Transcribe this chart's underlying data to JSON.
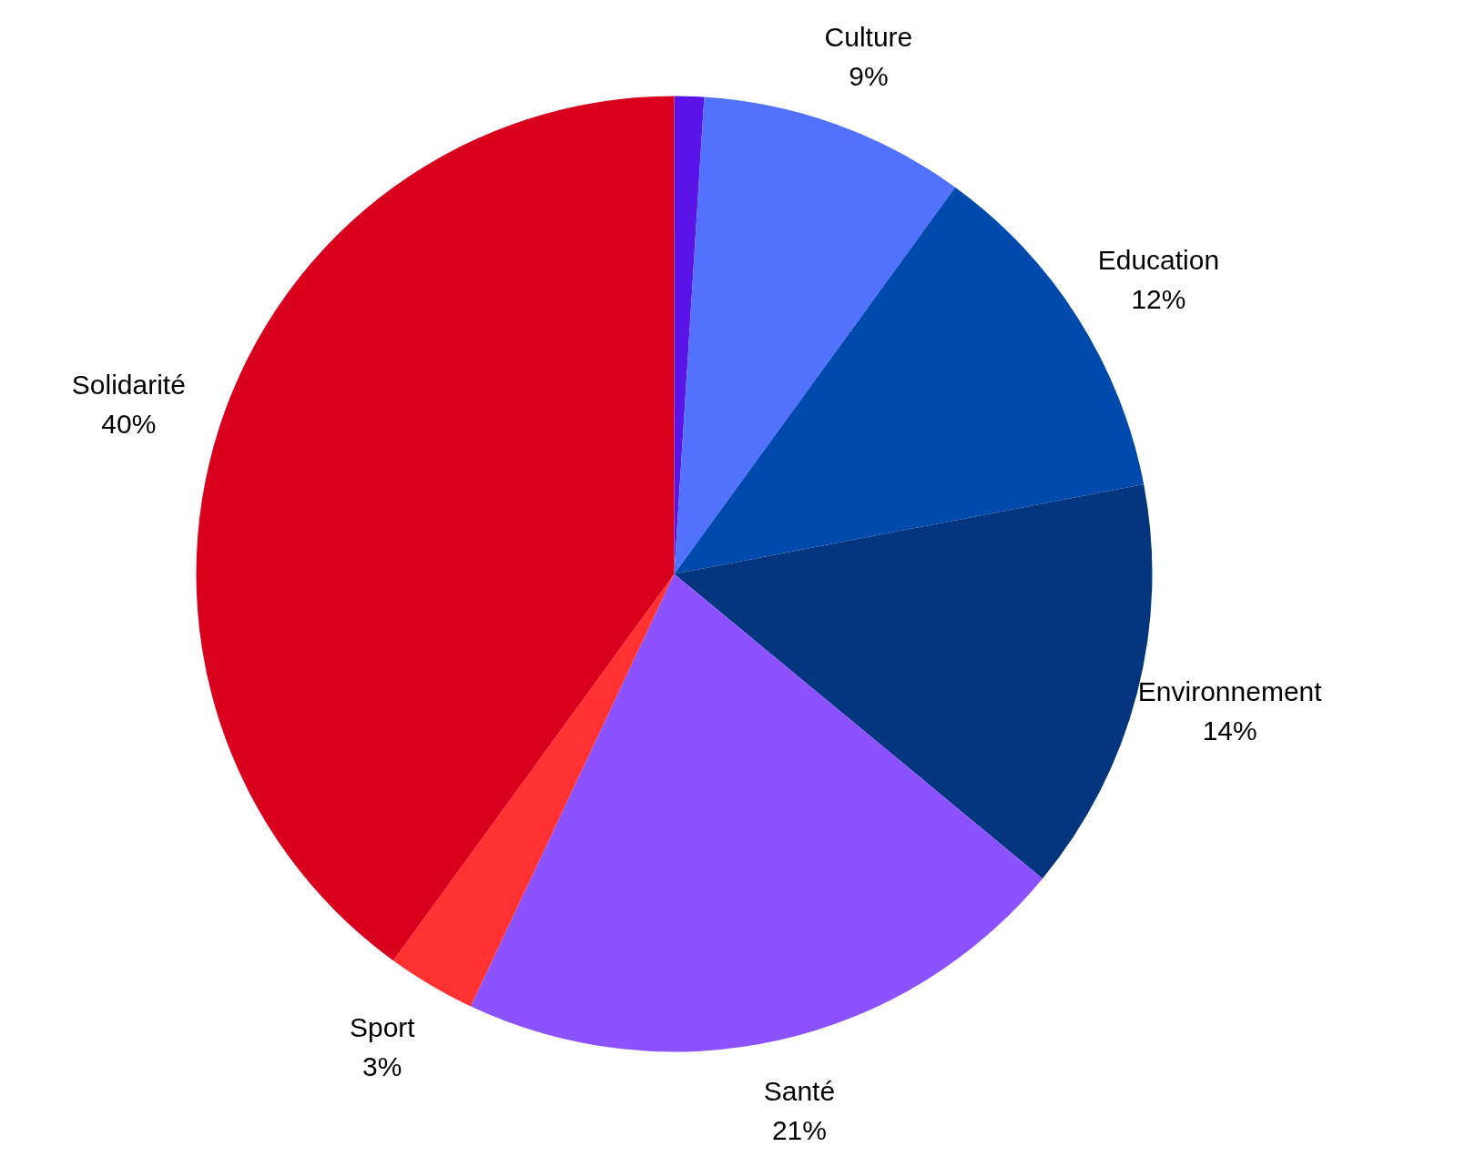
{
  "chart_data": {
    "type": "pie",
    "categories": [
      null,
      "Culture",
      "Education",
      "Environnement",
      "Santé",
      "Sport",
      "Solidarité"
    ],
    "values": [
      1,
      9,
      12,
      14,
      21,
      3,
      40
    ],
    "value_labels": [
      null,
      "9%",
      "12%",
      "14%",
      "21%",
      "3%",
      "40%"
    ],
    "colors": [
      "#5b14e8",
      "#5271ff",
      "#004aad",
      "#03367e",
      "#8c52ff",
      "#ff3131",
      "#d9001e"
    ]
  }
}
